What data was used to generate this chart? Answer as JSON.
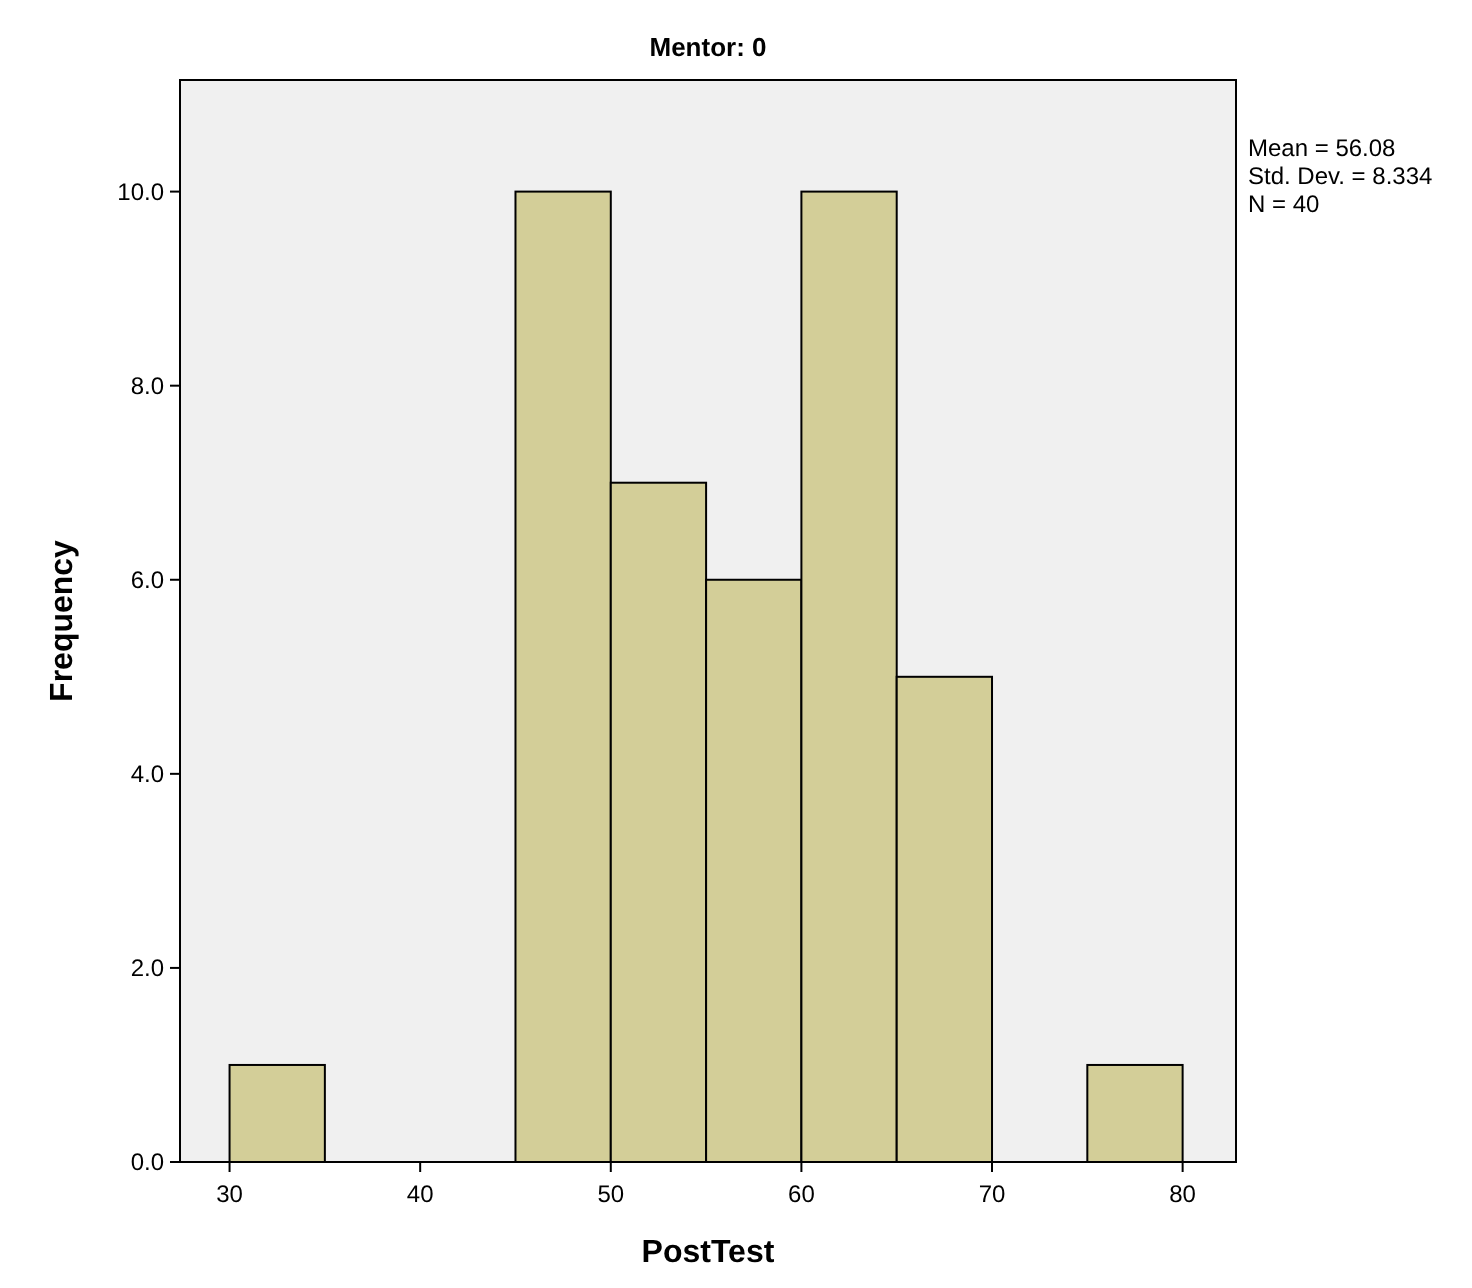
{
  "chart_data": {
    "type": "histogram",
    "title": "Mentor: 0",
    "xlabel": "PostTest",
    "ylabel": "Frequency",
    "bins": [
      30,
      35,
      40,
      45,
      50,
      55,
      60,
      65,
      70,
      75,
      80
    ],
    "values": [
      1,
      0,
      0,
      10,
      7,
      6,
      10,
      5,
      0,
      1
    ],
    "color": "#d3ce98",
    "xlim": [
      27.4,
      82.8
    ],
    "xticks": [
      30,
      40,
      50,
      60,
      70,
      80
    ],
    "ylim": [
      0,
      11.15
    ],
    "yticks": [
      {
        "value": 0,
        "label": "0.0"
      },
      {
        "value": 2,
        "label": "2.0"
      },
      {
        "value": 4,
        "label": "4.0"
      },
      {
        "value": 6,
        "label": "6.0"
      },
      {
        "value": 8,
        "label": "8.0"
      },
      {
        "value": 10,
        "label": "10.0"
      }
    ],
    "grid": false,
    "annotations": [
      "Mean = 56.08",
      "Std. Dev. = 8.334",
      "N = 40"
    ]
  }
}
